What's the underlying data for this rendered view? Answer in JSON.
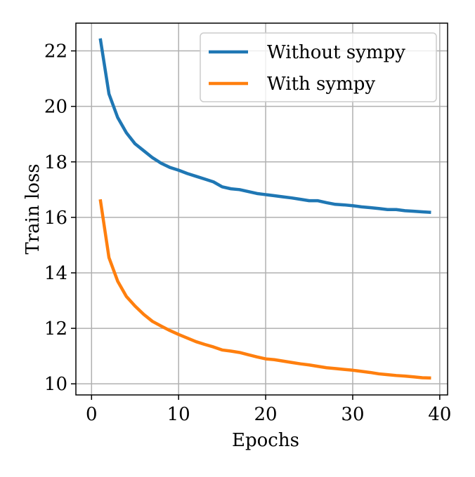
{
  "chart_data": {
    "type": "line",
    "x_label": "Epochs",
    "y_label": "Train loss",
    "x": [
      1,
      2,
      3,
      4,
      5,
      6,
      7,
      8,
      9,
      10,
      11,
      12,
      13,
      14,
      15,
      16,
      17,
      18,
      19,
      20,
      21,
      22,
      23,
      24,
      25,
      26,
      27,
      28,
      29,
      30,
      31,
      32,
      33,
      34,
      35,
      36,
      37,
      38,
      39
    ],
    "series": [
      {
        "name": "Without sympy",
        "color": "#1f77b4",
        "values": [
          22.45,
          20.45,
          19.6,
          19.05,
          18.65,
          18.4,
          18.15,
          17.95,
          17.8,
          17.7,
          17.58,
          17.48,
          17.38,
          17.28,
          17.1,
          17.03,
          17.0,
          16.93,
          16.86,
          16.82,
          16.78,
          16.74,
          16.7,
          16.65,
          16.6,
          16.6,
          16.53,
          16.47,
          16.45,
          16.42,
          16.38,
          16.35,
          16.32,
          16.28,
          16.28,
          16.24,
          16.22,
          16.2,
          16.18
        ]
      },
      {
        "name": "With sympy",
        "color": "#ff7f0e",
        "values": [
          16.65,
          14.55,
          13.7,
          13.15,
          12.8,
          12.5,
          12.25,
          12.08,
          11.92,
          11.78,
          11.65,
          11.52,
          11.42,
          11.33,
          11.22,
          11.18,
          11.13,
          11.05,
          10.97,
          10.9,
          10.87,
          10.82,
          10.77,
          10.72,
          10.68,
          10.63,
          10.58,
          10.55,
          10.52,
          10.49,
          10.45,
          10.41,
          10.36,
          10.33,
          10.3,
          10.28,
          10.25,
          10.22,
          10.21
        ]
      }
    ],
    "xlim": [
      -1.8,
      40.9
    ],
    "xticks": [
      0,
      10,
      20,
      30,
      40
    ],
    "ylim": [
      9.6,
      23.0
    ],
    "yticks": [
      10,
      12,
      14,
      16,
      18,
      20,
      22
    ],
    "grid": true,
    "legend": "upper right"
  }
}
